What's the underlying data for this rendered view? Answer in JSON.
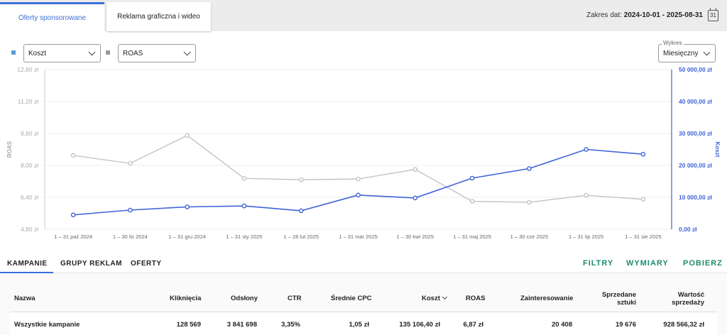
{
  "tabs": [
    {
      "label": "Oferty sponsorowane",
      "active": true
    },
    {
      "label": "Reklama graficzna i wideo",
      "active": false
    }
  ],
  "date_range": {
    "label": "Zakres dat:",
    "value": "2024-10-01 - 2025-08-31",
    "calendar_day": "31"
  },
  "selectors": {
    "metric1": {
      "value": "Koszt",
      "color": "#5b9bd5"
    },
    "metric2": {
      "value": "ROAS",
      "color": "#999999"
    },
    "period": {
      "legend": "Wykres",
      "value": "Miesięczny"
    }
  },
  "chart_data": {
    "type": "line",
    "categories": [
      "1 – 31 paź 2024",
      "1 – 30 lis 2024",
      "1 – 31 gru 2024",
      "1 – 31 sty 2025",
      "1 – 28 lut 2025",
      "1 – 31 mar 2025",
      "1 – 30 kwi 2025",
      "1 – 31 maj 2025",
      "1 – 30 cze 2025",
      "1 – 31 lip 2025",
      "1 – 31 sie 2025"
    ],
    "y_left": {
      "label": "ROAS",
      "min": 4.8,
      "max": 12.8,
      "ticks": [
        "12,80 zł",
        "11,20 zł",
        "9,60 zł",
        "8,00 zł",
        "6,40 zł",
        "4,80 zł"
      ]
    },
    "y_right": {
      "label": "Koszt",
      "min": 0,
      "max": 50000,
      "ticks": [
        "50 000,00 zł",
        "40 000,00 zł",
        "30 000,00 zł",
        "20 000,00 zł",
        "10 000,00 zł",
        "0,00 zł"
      ]
    },
    "series": [
      {
        "name": "ROAS",
        "axis": "left",
        "color": "#c4c4c4",
        "values": [
          8.5,
          8.1,
          9.5,
          7.35,
          7.28,
          7.32,
          7.8,
          6.2,
          6.15,
          6.5,
          6.3
        ]
      },
      {
        "name": "Koszt",
        "axis": "right",
        "color": "#3f63d9",
        "values": [
          4500,
          6000,
          7000,
          7300,
          5800,
          10700,
          9800,
          16000,
          19000,
          25000,
          23500
        ]
      }
    ],
    "grid": true
  },
  "subtabs": [
    "KAMPANIE",
    "GRUPY REKLAM",
    "OFERTY"
  ],
  "actions": [
    "FILTRY",
    "WYMIARY",
    "POBIERZ"
  ],
  "table": {
    "headers": {
      "name": "Nazwa",
      "clicks": "Kliknięcia",
      "impressions": "Odsłony",
      "ctr": "CTR",
      "cpc": "Średnie CPC",
      "cost": "Koszt",
      "roas": "ROAS",
      "interest": "Zainteresowanie",
      "sold1": "Sprzedane",
      "sold2": "sztuki",
      "value1": "Wartość",
      "value2": "sprzedaży"
    },
    "rows": [
      {
        "name": "Wszystkie kampanie",
        "clicks": "128 569",
        "impressions": "3 841 698",
        "ctr": "3,35%",
        "cpc": "1,05 zł",
        "cost": "135 106,40 zł",
        "roas": "6,87 zł",
        "interest": "20 408",
        "sold": "19 676",
        "value": "928 566,32 zł"
      }
    ]
  }
}
